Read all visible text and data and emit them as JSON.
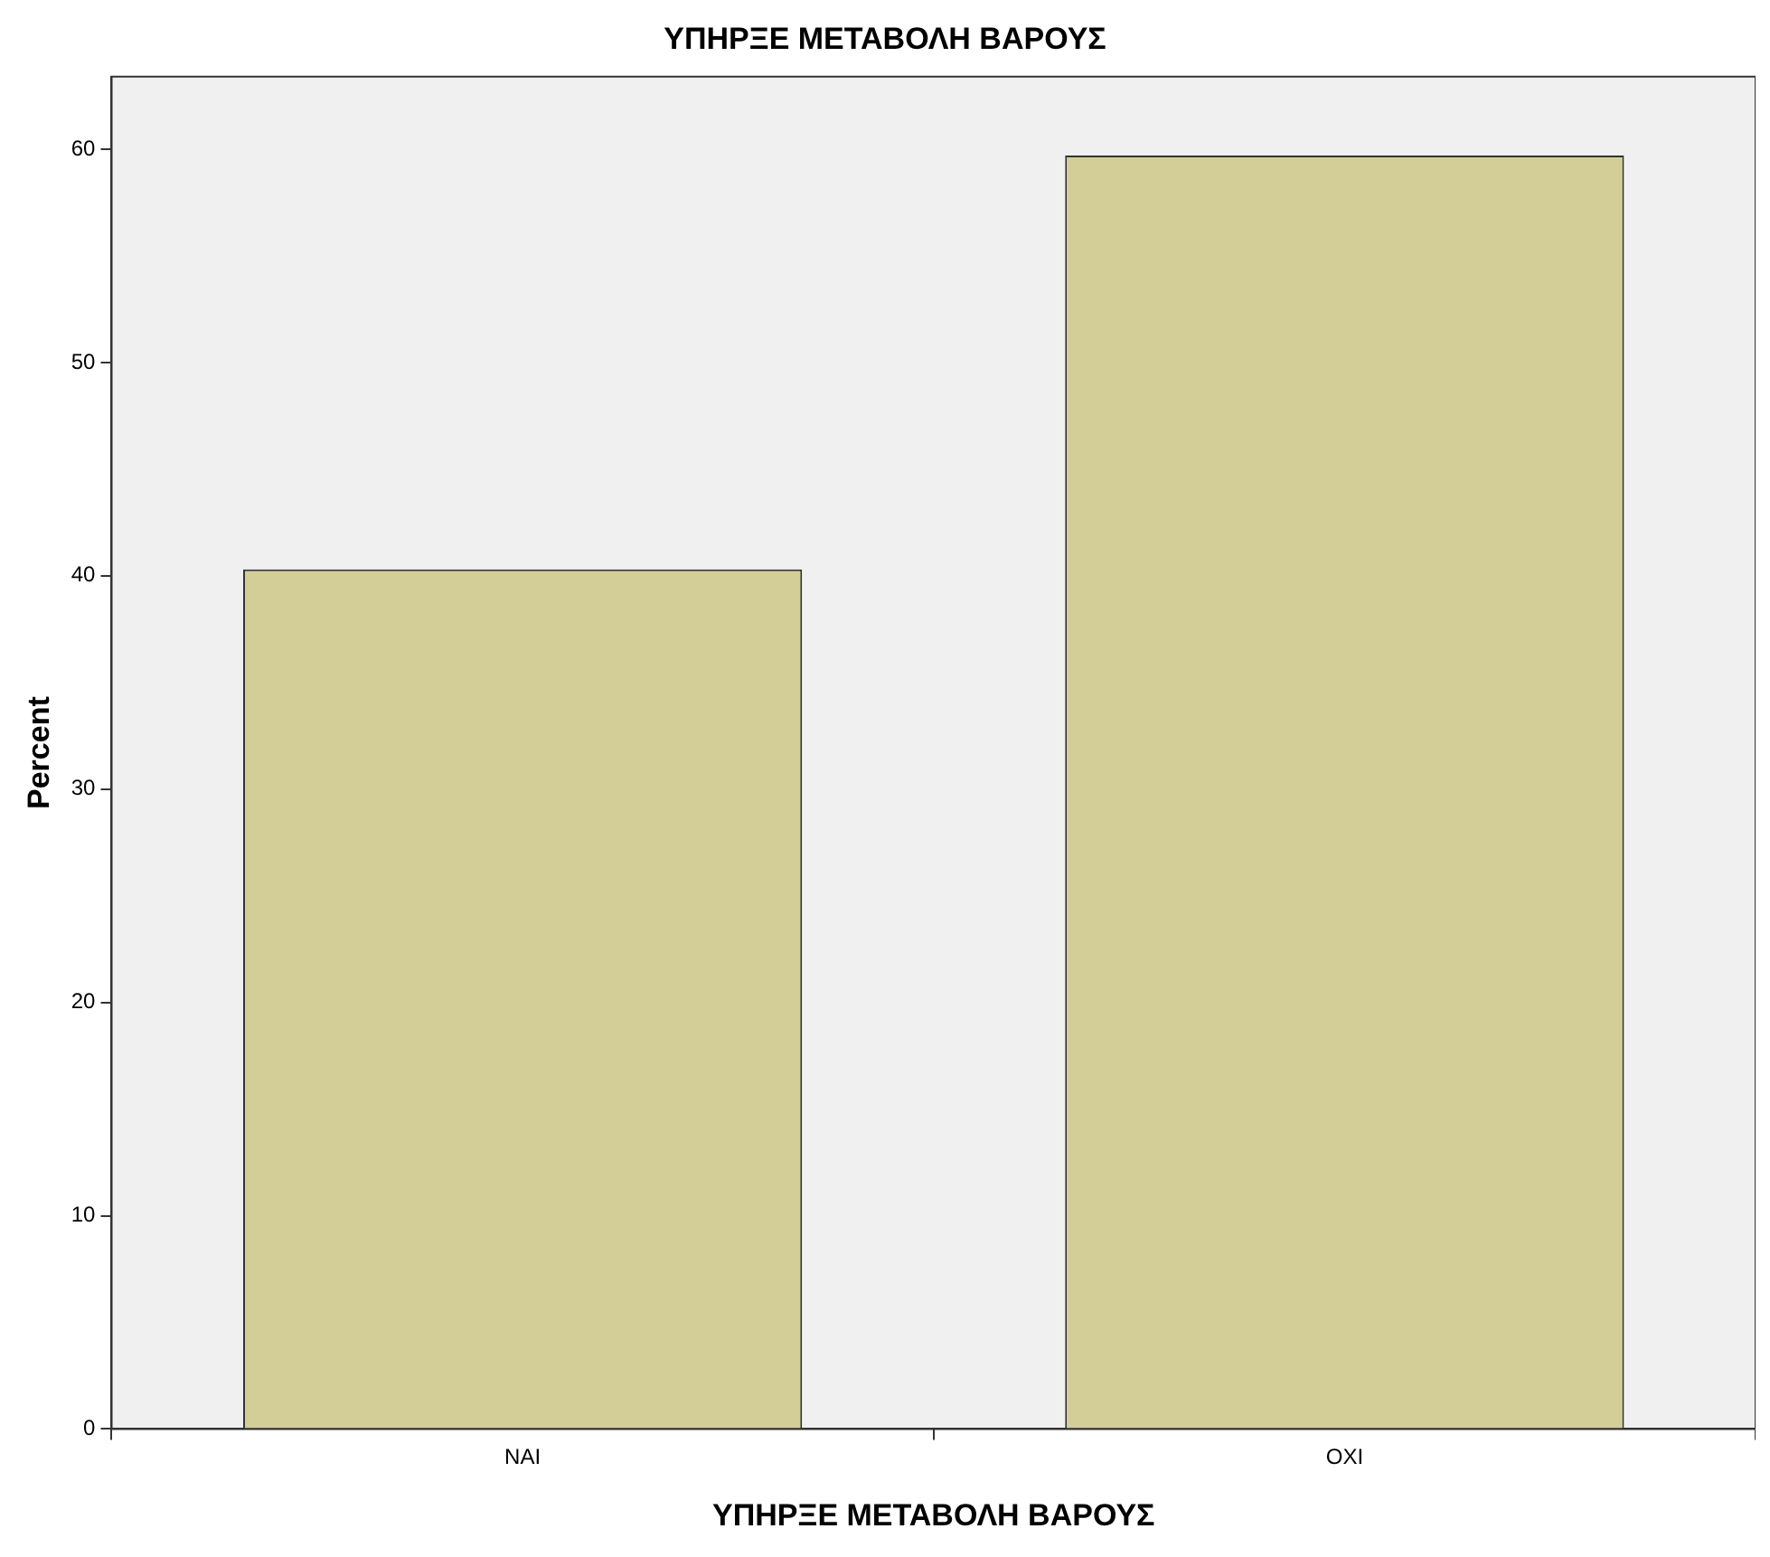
{
  "chart_data": {
    "type": "bar",
    "title": "ΥΠΗΡΞΕ ΜΕΤΑΒΟΛΗ ΒΑΡΟΥΣ",
    "xlabel": "ΥΠΗΡΞΕ ΜΕΤΑΒΟΛΗ ΒΑΡΟΥΣ",
    "ylabel": "Percent",
    "categories": [
      "ΝΑΙ",
      "ΟΧΙ"
    ],
    "values": [
      40.3,
      59.7
    ],
    "color": "#d3ce97",
    "ylim": [
      0,
      63.4
    ],
    "yticks": [
      0,
      10,
      20,
      30,
      40,
      50,
      60
    ],
    "grid": false,
    "legend": false
  }
}
